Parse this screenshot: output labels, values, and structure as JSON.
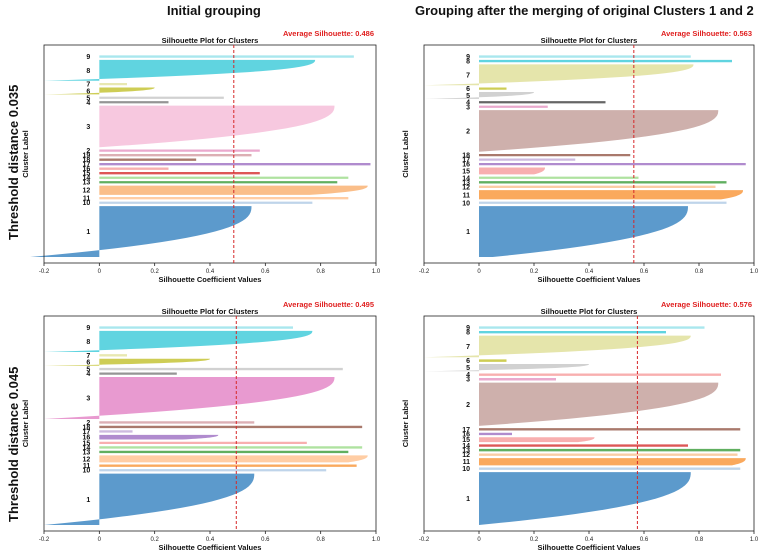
{
  "column_headers": [
    "Initial grouping",
    "Grouping after the merging of original Clusters 1 and 2"
  ],
  "row_headers": [
    "Threshold distance 0.035",
    "Threshold distance 0.045"
  ],
  "chart_data": [
    {
      "type": "silhouette",
      "title": "Silhouette Plot for Clusters",
      "average_label": "Average Silhouette: 0.486",
      "average": 0.486,
      "xlabel": "Silhouette Coefficient Values",
      "ylabel": "Cluster Label",
      "xlim": [
        -0.2,
        1.0
      ],
      "xticks": [
        "-0.2",
        "0",
        "0.2",
        "0.4",
        "0.6",
        "0.8",
        "1.0"
      ],
      "clusters": [
        {
          "label": "1",
          "size": 22,
          "max": 0.55,
          "min": -0.25,
          "color": "#4a8fc6"
        },
        {
          "label": "10",
          "size": 1,
          "max": 0.77,
          "min": 0.77,
          "color": "#b8cfe8"
        },
        {
          "label": "11",
          "size": 1,
          "max": 0.9,
          "min": 0.9,
          "color": "#ffc89a"
        },
        {
          "label": "12",
          "size": 4,
          "max": 0.97,
          "min": 0.76,
          "color": "#f9b77c"
        },
        {
          "label": "13",
          "size": 1,
          "max": 0.86,
          "min": 0.86,
          "color": "#4fa64f"
        },
        {
          "label": "14",
          "size": 1,
          "max": 0.9,
          "min": 0.9,
          "color": "#a6df96"
        },
        {
          "label": "15",
          "size": 1,
          "max": 0.58,
          "min": 0.58,
          "color": "#d94545"
        },
        {
          "label": "16",
          "size": 1,
          "max": 0.25,
          "min": 0.25,
          "color": "#f7a6a6"
        },
        {
          "label": "17",
          "size": 1,
          "max": 0.98,
          "min": 0.98,
          "color": "#a77ec9"
        },
        {
          "label": "18",
          "size": 1,
          "max": 0.35,
          "min": 0.35,
          "color": "#a06a5c"
        },
        {
          "label": "19",
          "size": 1,
          "max": 0.55,
          "min": -0.15,
          "color": "#d8a6ac"
        },
        {
          "label": "2",
          "size": 1,
          "max": 0.58,
          "min": 0.58,
          "color": "#e8a0c8"
        },
        {
          "label": "3",
          "size": 18,
          "max": 0.85,
          "min": 0.0,
          "color": "#f6c2dc"
        },
        {
          "label": "4",
          "size": 1,
          "max": 0.25,
          "min": 0.25,
          "color": "#8a8a8a"
        },
        {
          "label": "5",
          "size": 1,
          "max": 0.45,
          "min": 0.45,
          "color": "#cccccc"
        },
        {
          "label": "6",
          "size": 3,
          "max": 0.2,
          "min": -0.2,
          "color": "#c9c843"
        },
        {
          "label": "7",
          "size": 1,
          "max": 0.1,
          "min": 0.1,
          "color": "#e5e5a8"
        },
        {
          "label": "8",
          "size": 9,
          "max": 0.78,
          "min": -0.2,
          "color": "#4fcfdd"
        },
        {
          "label": "9",
          "size": 1,
          "max": 0.92,
          "min": 0.92,
          "color": "#a0e4ec"
        }
      ]
    },
    {
      "type": "silhouette",
      "title": "Silhouette Plot for Clusters",
      "average_label": "Average Silhouette: 0.563",
      "average": 0.563,
      "xlabel": "Silhouette Coefficient Values",
      "ylabel": "Cluster Label",
      "xlim": [
        -0.2,
        1.0
      ],
      "xticks": [
        "-0.2",
        "0",
        "0.2",
        "0.4",
        "0.6",
        "0.8",
        "1.0"
      ],
      "clusters": [
        {
          "label": "1",
          "size": 22,
          "max": 0.76,
          "min": 0.05,
          "color": "#4a8fc6"
        },
        {
          "label": "10",
          "size": 1,
          "max": 0.9,
          "min": 0.9,
          "color": "#b8cfe8"
        },
        {
          "label": "11",
          "size": 4,
          "max": 0.96,
          "min": 0.88,
          "color": "#f9a04b"
        },
        {
          "label": "12",
          "size": 1,
          "max": 0.86,
          "min": 0.86,
          "color": "#f9c89a"
        },
        {
          "label": "13",
          "size": 1,
          "max": 0.9,
          "min": 0.9,
          "color": "#4fa64f"
        },
        {
          "label": "14",
          "size": 1,
          "max": 0.58,
          "min": 0.58,
          "color": "#a6df96"
        },
        {
          "label": "15",
          "size": 3,
          "max": 0.24,
          "min": 0.2,
          "color": "#f7a6a6"
        },
        {
          "label": "16",
          "size": 1,
          "max": 0.97,
          "min": 0.97,
          "color": "#a77ec9"
        },
        {
          "label": "17",
          "size": 1,
          "max": 0.35,
          "min": 0.35,
          "color": "#c8b3dc"
        },
        {
          "label": "18",
          "size": 1,
          "max": 0.55,
          "min": -0.15,
          "color": "#a06a5c"
        },
        {
          "label": "2",
          "size": 18,
          "max": 0.87,
          "min": 0.0,
          "color": "#c9a7a3"
        },
        {
          "label": "3",
          "size": 1,
          "max": 0.25,
          "min": -0.2,
          "color": "#e8a0c8"
        },
        {
          "label": "4",
          "size": 1,
          "max": 0.46,
          "min": 0.46,
          "color": "#555555"
        },
        {
          "label": "5",
          "size": 3,
          "max": 0.2,
          "min": -0.2,
          "color": "#cccccc"
        },
        {
          "label": "6",
          "size": 1,
          "max": 0.1,
          "min": -0.2,
          "color": "#c9c843"
        },
        {
          "label": "7",
          "size": 9,
          "max": 0.78,
          "min": -0.2,
          "color": "#e2e2a2"
        },
        {
          "label": "8",
          "size": 1,
          "max": 0.92,
          "min": 0.92,
          "color": "#4fcfdd"
        },
        {
          "label": "9",
          "size": 1,
          "max": 0.77,
          "min": 0.77,
          "color": "#a0e4ec"
        }
      ]
    },
    {
      "type": "silhouette",
      "title": "Silhouette Plot for Clusters",
      "average_label": "Average Silhouette: 0.495",
      "average": 0.495,
      "xlabel": "Silhouette Coefficient Values",
      "ylabel": "Cluster Label",
      "xlim": [
        -0.2,
        1.0
      ],
      "xticks": [
        "-0.2",
        "0",
        "0.2",
        "0.4",
        "0.6",
        "0.8",
        "1.0"
      ],
      "clusters": [
        {
          "label": "1",
          "size": 22,
          "max": 0.56,
          "min": -0.2,
          "color": "#4a8fc6"
        },
        {
          "label": "10",
          "size": 1,
          "max": 0.82,
          "min": 0.82,
          "color": "#b8cfe8"
        },
        {
          "label": "11",
          "size": 1,
          "max": 0.93,
          "min": 0.93,
          "color": "#f9a04b"
        },
        {
          "label": "12",
          "size": 3,
          "max": 0.97,
          "min": 0.9,
          "color": "#ffc89a"
        },
        {
          "label": "13",
          "size": 1,
          "max": 0.9,
          "min": 0.9,
          "color": "#4fa64f"
        },
        {
          "label": "14",
          "size": 1,
          "max": 0.95,
          "min": 0.95,
          "color": "#a6df96"
        },
        {
          "label": "15",
          "size": 1,
          "max": 0.75,
          "min": 0.75,
          "color": "#f7a6a6"
        },
        {
          "label": "16",
          "size": 2,
          "max": 0.43,
          "min": 0.3,
          "color": "#a77ec9"
        },
        {
          "label": "17",
          "size": 1,
          "max": 0.12,
          "min": -0.2,
          "color": "#c8b3dc"
        },
        {
          "label": "18",
          "size": 1,
          "max": 0.95,
          "min": 0.95,
          "color": "#a06a5c"
        },
        {
          "label": "2",
          "size": 1,
          "max": 0.56,
          "min": 0.56,
          "color": "#d8a6ac"
        },
        {
          "label": "3",
          "size": 18,
          "max": 0.85,
          "min": -0.2,
          "color": "#e68fcb"
        },
        {
          "label": "4",
          "size": 1,
          "max": 0.28,
          "min": 0.28,
          "color": "#8a8a8a"
        },
        {
          "label": "5",
          "size": 1,
          "max": 0.88,
          "min": 0.88,
          "color": "#cccccc"
        },
        {
          "label": "6",
          "size": 3,
          "max": 0.4,
          "min": -0.2,
          "color": "#c9c843"
        },
        {
          "label": "7",
          "size": 1,
          "max": 0.1,
          "min": 0.1,
          "color": "#e5e5a8"
        },
        {
          "label": "8",
          "size": 9,
          "max": 0.77,
          "min": -0.2,
          "color": "#4fcfdd"
        },
        {
          "label": "9",
          "size": 1,
          "max": 0.7,
          "min": 0.7,
          "color": "#a0e4ec"
        }
      ]
    },
    {
      "type": "silhouette",
      "title": "Silhouette Plot for Clusters",
      "average_label": "Average Silhouette: 0.576",
      "average": 0.576,
      "xlabel": "Silhouette Coefficient Values",
      "ylabel": "Cluster Label",
      "xlim": [
        -0.2,
        1.0
      ],
      "xticks": [
        "-0.2",
        "0",
        "0.2",
        "0.4",
        "0.6",
        "0.8",
        "1.0"
      ],
      "clusters": [
        {
          "label": "1",
          "size": 22,
          "max": 0.77,
          "min": 0.0,
          "color": "#4a8fc6"
        },
        {
          "label": "10",
          "size": 1,
          "max": 0.95,
          "min": 0.95,
          "color": "#b8cfe8"
        },
        {
          "label": "11",
          "size": 3,
          "max": 0.97,
          "min": 0.92,
          "color": "#f9a04b"
        },
        {
          "label": "12",
          "size": 1,
          "max": 0.94,
          "min": 0.94,
          "color": "#f9c89a"
        },
        {
          "label": "13",
          "size": 1,
          "max": 0.95,
          "min": 0.95,
          "color": "#4fa64f"
        },
        {
          "label": "14",
          "size": 1,
          "max": 0.76,
          "min": 0.76,
          "color": "#d94545"
        },
        {
          "label": "15",
          "size": 2,
          "max": 0.42,
          "min": 0.36,
          "color": "#f7a6a6"
        },
        {
          "label": "16",
          "size": 1,
          "max": 0.12,
          "min": -0.2,
          "color": "#a77ec9"
        },
        {
          "label": "17",
          "size": 1,
          "max": 0.95,
          "min": 0.95,
          "color": "#a06a5c"
        },
        {
          "label": "2",
          "size": 18,
          "max": 0.87,
          "min": 0.0,
          "color": "#c9a7a3"
        },
        {
          "label": "3",
          "size": 1,
          "max": 0.28,
          "min": -0.2,
          "color": "#e8a0c8"
        },
        {
          "label": "4",
          "size": 1,
          "max": 0.88,
          "min": 0.88,
          "color": "#f7a6a6"
        },
        {
          "label": "5",
          "size": 3,
          "max": 0.4,
          "min": -0.2,
          "color": "#cccccc"
        },
        {
          "label": "6",
          "size": 1,
          "max": 0.1,
          "min": -0.2,
          "color": "#c9c843"
        },
        {
          "label": "7",
          "size": 9,
          "max": 0.77,
          "min": -0.2,
          "color": "#e2e2a2"
        },
        {
          "label": "8",
          "size": 1,
          "max": 0.68,
          "min": 0.68,
          "color": "#4fcfdd"
        },
        {
          "label": "9",
          "size": 1,
          "max": 0.82,
          "min": 0.82,
          "color": "#a0e4ec"
        }
      ]
    }
  ]
}
